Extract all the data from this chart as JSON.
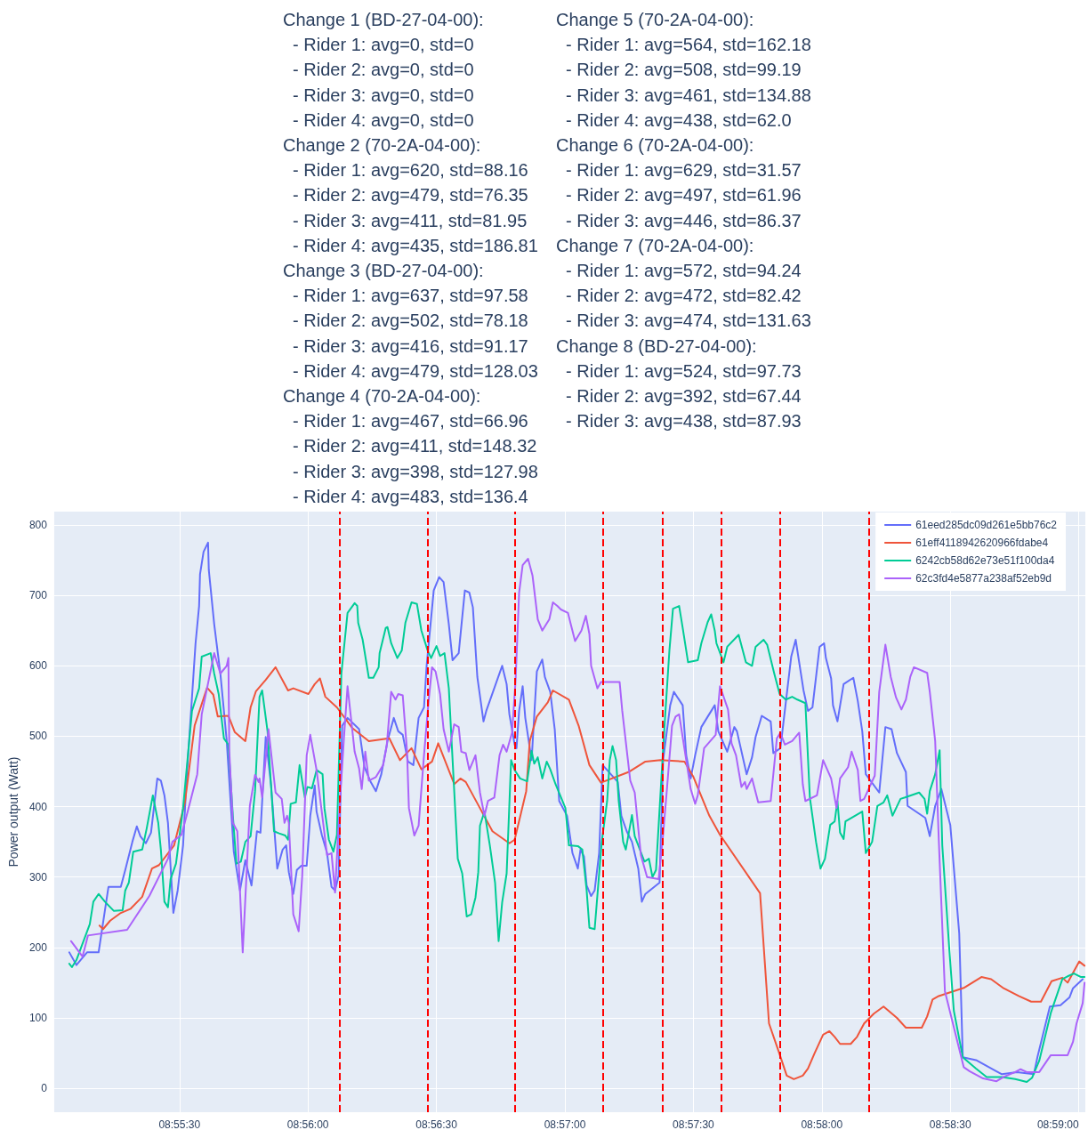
{
  "chart_data": {
    "type": "line",
    "ylabel": "Power output (Watt)",
    "annotations": [
      "Change 1 (BD-27-04-00):\n  - Rider 1: avg=0, std=0\n  - Rider 2: avg=0, std=0\n  - Rider 3: avg=0, std=0\n  - Rider 4: avg=0, std=0\nChange 2 (70-2A-04-00):\n  - Rider 1: avg=620, std=88.16\n  - Rider 2: avg=479, std=76.35\n  - Rider 3: avg=411, std=81.95\n  - Rider 4: avg=435, std=186.81\nChange 3 (BD-27-04-00):\n  - Rider 1: avg=637, std=97.58\n  - Rider 2: avg=502, std=78.18\n  - Rider 3: avg=416, std=91.17\n  - Rider 4: avg=479, std=128.03\nChange 4 (70-2A-04-00):\n  - Rider 1: avg=467, std=66.96\n  - Rider 2: avg=411, std=148.32\n  - Rider 3: avg=398, std=127.98\n  - Rider 4: avg=483, std=136.4",
      "Change 5 (70-2A-04-00):\n  - Rider 1: avg=564, std=162.18\n  - Rider 2: avg=508, std=99.19\n  - Rider 3: avg=461, std=134.88\n  - Rider 4: avg=438, std=62.0\nChange 6 (70-2A-04-00):\n  - Rider 1: avg=629, std=31.57\n  - Rider 2: avg=497, std=61.96\n  - Rider 3: avg=446, std=86.37\nChange 7 (70-2A-04-00):\n  - Rider 1: avg=572, std=94.24\n  - Rider 2: avg=472, std=82.42\n  - Rider 3: avg=474, std=131.63\nChange 8 (BD-27-04-00):\n  - Rider 1: avg=524, std=97.73\n  - Rider 2: avg=392, std=67.44\n  - Rider 3: avg=438, std=87.93"
    ],
    "xlim": [
      8.91687,
      8.98376
    ],
    "xticks": [
      {
        "value": 8.925,
        "label": "08:55:30"
      },
      {
        "value": 8.933333,
        "label": "08:56:00"
      },
      {
        "value": 8.941667,
        "label": "08:56:30"
      },
      {
        "value": 8.95,
        "label": "08:57:00"
      },
      {
        "value": 8.958333,
        "label": "08:57:30"
      },
      {
        "value": 8.966667,
        "label": "08:58:00"
      },
      {
        "value": 8.975,
        "label": "08:58:30"
      },
      {
        "value": 8.983333,
        "label": "08:59:00"
      }
    ],
    "ylim": [
      -34,
      819
    ],
    "yticks": [
      0,
      100,
      200,
      300,
      400,
      500,
      600,
      700,
      800
    ],
    "grid": true,
    "legend": "top right",
    "marker": "none",
    "line_style": "solid",
    "ref_lines": [
      {
        "axis": "x",
        "value": 8.93538,
        "color": "#ff0000",
        "line_style": "dashed"
      },
      {
        "axis": "x",
        "value": 8.94109,
        "color": "#ff0000",
        "line_style": "dashed"
      },
      {
        "axis": "x",
        "value": 8.94674,
        "color": "#ff0000",
        "line_style": "dashed"
      },
      {
        "axis": "x",
        "value": 8.95245,
        "color": "#ff0000",
        "line_style": "dashed"
      },
      {
        "axis": "x",
        "value": 8.95631,
        "color": "#ff0000",
        "line_style": "dashed"
      },
      {
        "axis": "x",
        "value": 8.96012,
        "color": "#ff0000",
        "line_style": "dashed"
      },
      {
        "axis": "x",
        "value": 8.96393,
        "color": "#ff0000",
        "line_style": "dashed"
      },
      {
        "axis": "x",
        "value": 8.96975,
        "color": "#ff0000",
        "line_style": "dashed"
      }
    ],
    "series": [
      {
        "name": "61eed285dc09d261e5bb76c2",
        "color": "#636efa",
        "x": [
          8.91785,
          8.91831,
          8.919,
          8.91975,
          8.92039,
          8.92119,
          8.92148,
          8.92194,
          8.92223,
          8.92246,
          8.92281,
          8.92315,
          8.92356,
          8.92379,
          8.92402,
          8.92425,
          8.9246,
          8.92488,
          8.92523,
          8.92546,
          8.92604,
          8.92627,
          8.92633,
          8.92656,
          8.92685,
          8.9269,
          8.92725,
          8.92765,
          8.92806,
          8.92852,
          8.92892,
          8.92927,
          8.92967,
          8.93002,
          8.93025,
          8.93059,
          8.93094,
          8.93134,
          8.93169,
          8.93192,
          8.93209,
          8.93238,
          8.93261,
          8.9329,
          8.93325,
          8.93348,
          8.93377,
          8.93389,
          8.93423,
          8.93457,
          8.93486,
          8.93509,
          8.93532,
          8.93555,
          8.9359,
          8.93665,
          8.937,
          8.9374,
          8.93774,
          8.93809,
          8.93849,
          8.9389,
          8.93919,
          8.93948,
          8.93982,
          8.94017,
          8.94051,
          8.94086,
          8.94103,
          8.94149,
          8.94184,
          8.94213,
          8.94247,
          8.94271,
          8.94311,
          8.94351,
          8.9438,
          8.94403,
          8.94432,
          8.94472,
          8.9449,
          8.94593,
          8.94622,
          8.9464,
          8.94674,
          8.94686,
          8.94703,
          8.94726,
          8.94743,
          8.94784,
          8.94818,
          8.94853,
          8.9487,
          8.94905,
          8.94934,
          8.94963,
          8.95014,
          8.95049,
          8.95084,
          8.95101,
          8.95124,
          8.95141,
          8.9517,
          8.95193,
          8.95222,
          8.95245,
          8.95343,
          8.95366,
          8.95401,
          8.95435,
          8.95476,
          8.95499,
          8.95522,
          8.95614,
          8.95637,
          8.95683,
          8.95707,
          8.95764,
          8.95787,
          8.95816,
          8.95845,
          8.95885,
          8.95972,
          8.95995,
          8.96053,
          8.96099,
          8.96116,
          8.96179,
          8.96214,
          8.96237,
          8.96277,
          8.96335,
          8.96352,
          8.96398,
          8.96468,
          8.96497,
          8.96548,
          8.96577,
          8.96606,
          8.96652,
          8.96681,
          8.96693,
          8.96727,
          8.96739,
          8.96768,
          8.96808,
          8.96871,
          8.969,
          8.96929,
          8.96952,
          8.97039,
          8.97079,
          8.97119,
          8.97154,
          8.97212,
          8.97223,
          8.97338,
          8.97367,
          8.97402,
          8.97442,
          8.975,
          8.97558,
          8.97581,
          8.97667,
          8.978,
          8.97835,
          8.97932,
          8.98042,
          8.98065,
          8.98146,
          8.98215,
          8.98273,
          8.98296,
          8.98359
        ],
        "values": [
          193,
          175,
          193,
          193,
          286,
          286,
          310,
          350,
          372,
          358,
          348,
          363,
          440,
          437,
          416,
          377,
          249,
          281,
          345,
          440,
          632,
          685,
          730,
          762,
          775,
          736,
          659,
          589,
          494,
          336,
          281,
          324,
          288,
          365,
          363,
          499,
          430,
          312,
          339,
          345,
          307,
          276,
          310,
          316,
          316,
          387,
          430,
          393,
          360,
          334,
          286,
          281,
          302,
          515,
          526,
          510,
          456,
          435,
          422,
          446,
          493,
          526,
          507,
          502,
          464,
          459,
          526,
          541,
          600,
          707,
          726,
          719,
          659,
          608,
          618,
          707,
          704,
          683,
          584,
          521,
          536,
          600,
          574,
          531,
          488,
          483,
          536,
          571,
          526,
          466,
          592,
          609,
          584,
          563,
          510,
          408,
          387,
          334,
          312,
          339,
          329,
          288,
          273,
          281,
          334,
          459,
          435,
          387,
          365,
          350,
          312,
          265,
          276,
          292,
          466,
          544,
          563,
          544,
          473,
          440,
          473,
          513,
          544,
          507,
          478,
          513,
          507,
          446,
          470,
          499,
          529,
          521,
          476,
          483,
          613,
          637,
          565,
          536,
          541,
          627,
          632,
          611,
          582,
          544,
          521,
          574,
          583,
          550,
          507,
          446,
          420,
          513,
          510,
          476,
          449,
          401,
          384,
          358,
          401,
          425,
          374,
          220,
          44,
          40,
          24,
          20,
          23,
          20,
          44,
          116,
          118,
          129,
          142,
          155
        ]
      },
      {
        "name": "61eff4118942620966fdabe4",
        "color": "#ef553b",
        "x": [
          8.91981,
          8.92004,
          8.9205,
          8.92119,
          8.92183,
          8.92258,
          8.92321,
          8.92367,
          8.92465,
          8.92535,
          8.92598,
          8.92679,
          8.92719,
          8.92748,
          8.92817,
          8.92858,
          8.92927,
          8.92961,
          8.92996,
          8.93059,
          8.93123,
          8.93204,
          8.93238,
          8.93336,
          8.93377,
          8.93411,
          8.93446,
          8.93521,
          8.93619,
          8.93728,
          8.93861,
          8.9393,
          8.94005,
          8.94069,
          8.94138,
          8.94178,
          8.94282,
          8.94322,
          8.94357,
          8.94461,
          8.9453,
          8.9464,
          8.94674,
          8.94749,
          8.94772,
          8.94818,
          8.94889,
          8.94922,
          8.95026,
          8.95089,
          8.95159,
          8.95234,
          8.95412,
          8.95522,
          8.9562,
          8.95776,
          8.95834,
          8.95937,
          8.96006,
          8.96266,
          8.96324,
          8.96387,
          8.96439,
          8.96485,
          8.96543,
          8.96577,
          8.96618,
          8.96675,
          8.96716,
          8.9675,
          8.96785,
          8.96854,
          8.96895,
          8.96941,
          8.97004,
          8.97067,
          8.97154,
          8.97212,
          8.97315,
          8.9735,
          8.97385,
          8.97425,
          8.97592,
          8.97702,
          8.97765,
          8.97846,
          8.97944,
          8.98025,
          8.98088,
          8.98157,
          8.98227,
          8.98261,
          8.98336,
          8.98371
        ],
        "values": [
          231,
          226,
          238,
          249,
          255,
          272,
          312,
          317,
          345,
          406,
          515,
          569,
          559,
          528,
          529,
          506,
          493,
          541,
          564,
          580,
          598,
          565,
          568,
          560,
          574,
          582,
          556,
          541,
          512,
          493,
          497,
          466,
          483,
          453,
          464,
          490,
          432,
          440,
          435,
          393,
          365,
          348,
          353,
          422,
          493,
          528,
          548,
          565,
          552,
          515,
          459,
          434,
          449,
          464,
          466,
          464,
          442,
          387,
          360,
          277,
          92,
          52,
          18,
          13,
          18,
          28,
          49,
          76,
          81,
          73,
          63,
          63,
          73,
          92,
          106,
          116,
          100,
          86,
          86,
          102,
          126,
          131,
          143,
          158,
          155,
          142,
          131,
          123,
          123,
          152,
          157,
          150,
          180,
          174
        ]
      },
      {
        "name": "6242cb58d62e73e51f100da4",
        "color": "#00cc96",
        "x": [
          8.91785,
          8.91802,
          8.91831,
          8.91918,
          8.91941,
          8.91975,
          8.92016,
          8.92073,
          8.92131,
          8.92148,
          8.92171,
          8.922,
          8.92258,
          8.92287,
          8.92327,
          8.92362,
          8.92379,
          8.92402,
          8.92425,
          8.92442,
          8.92477,
          8.92523,
          8.92581,
          8.92627,
          8.92644,
          8.92702,
          8.92725,
          8.92754,
          8.92788,
          8.92817,
          8.92846,
          8.92869,
          8.92898,
          8.92927,
          8.92961,
          8.9299,
          8.93019,
          8.93036,
          8.93071,
          8.93113,
          8.93146,
          8.93186,
          8.93204,
          8.93221,
          8.93255,
          8.93279,
          8.93313,
          8.9333,
          8.93359,
          8.93389,
          8.93428,
          8.9344,
          8.93469,
          8.93498,
          8.93521,
          8.9355,
          8.9359,
          8.93636,
          8.93653,
          8.93659,
          8.93688,
          8.93728,
          8.93757,
          8.93792,
          8.93798,
          8.93838,
          8.93849,
          8.93873,
          8.93913,
          8.93942,
          8.93965,
          8.94005,
          8.9404,
          8.94069,
          8.94109,
          8.94132,
          8.94167,
          8.9419,
          8.94219,
          8.94247,
          8.94305,
          8.94334,
          8.94363,
          8.94392,
          8.9442,
          8.94438,
          8.94449,
          8.94478,
          8.94513,
          8.94547,
          8.9457,
          8.94593,
          8.94622,
          8.94651,
          8.94674,
          8.94709,
          8.94755,
          8.94784,
          8.94801,
          8.94824,
          8.94853,
          8.94882,
          8.94905,
          8.94939,
          8.95003,
          8.95026,
          8.95084,
          8.95113,
          8.95141,
          8.95159,
          8.95193,
          8.95239,
          8.95274,
          8.95291,
          8.95309,
          8.95332,
          8.95349,
          8.95378,
          8.95395,
          8.95435,
          8.95453,
          8.95476,
          8.95516,
          8.95545,
          8.95568,
          8.95591,
          8.95608,
          8.95643,
          8.95678,
          8.95701,
          8.95741,
          8.95764,
          8.95799,
          8.95862,
          8.95885,
          8.95926,
          8.95949,
          8.95972,
          8.95983,
          8.96029,
          8.96053,
          8.96127,
          8.96174,
          8.96214,
          8.96237,
          8.96289,
          8.96312,
          8.96358,
          8.96393,
          8.96433,
          8.96474,
          8.96508,
          8.9656,
          8.96589,
          8.96629,
          8.96658,
          8.96687,
          8.96721,
          8.9675,
          8.96768,
          8.96785,
          8.96808,
          8.9682,
          8.96929,
          8.96952,
          8.96993,
          8.97027,
          8.97067,
          8.97091,
          8.97125,
          8.97177,
          8.97206,
          8.97298,
          8.97333,
          8.9735,
          8.97367,
          8.97402,
          8.97431,
          8.97448,
          8.97494,
          8.97523,
          8.97581,
          8.97667,
          8.97736,
          8.97835,
          8.97921,
          8.97996,
          8.98031,
          8.98077,
          8.98152,
          8.98227,
          8.98261,
          8.98302,
          8.98348,
          8.98371
        ],
        "values": [
          177,
          172,
          182,
          233,
          265,
          276,
          265,
          252,
          253,
          281,
          292,
          336,
          339,
          369,
          416,
          377,
          339,
          265,
          257,
          297,
          319,
          398,
          536,
          568,
          613,
          618,
          589,
          560,
          497,
          488,
          387,
          319,
          322,
          350,
          358,
          422,
          556,
          565,
          507,
          365,
          362,
          359,
          353,
          404,
          406,
          459,
          413,
          428,
          426,
          452,
          446,
          398,
          353,
          336,
          360,
          589,
          675,
          689,
          685,
          661,
          637,
          583,
          583,
          598,
          618,
          654,
          655,
          632,
          611,
          622,
          661,
          690,
          688,
          650,
          622,
          611,
          628,
          614,
          618,
          568,
          326,
          305,
          244,
          247,
          271,
          307,
          373,
          393,
          345,
          292,
          209,
          264,
          305,
          466,
          452,
          440,
          436,
          479,
          461,
          470,
          440,
          464,
          453,
          432,
          398,
          345,
          344,
          339,
          281,
          228,
          226,
          350,
          408,
          466,
          486,
          466,
          408,
          350,
          339,
          388,
          358,
          345,
          322,
          326,
          300,
          310,
          373,
          504,
          622,
          681,
          685,
          654,
          605,
          608,
          632,
          662,
          673,
          650,
          632,
          605,
          627,
          644,
          605,
          600,
          627,
          637,
          630,
          589,
          560,
          552,
          556,
          552,
          547,
          413,
          350,
          312,
          326,
          374,
          379,
          408,
          363,
          354,
          379,
          393,
          334,
          350,
          401,
          406,
          416,
          387,
          411,
          413,
          420,
          411,
          390,
          422,
          446,
          480,
          345,
          196,
          110,
          44,
          28,
          16,
          16,
          13,
          9,
          15,
          39,
          107,
          155,
          159,
          163,
          158,
          158
        ]
      },
      {
        "name": "62c3fd4e5877a238af52eb9d",
        "color": "#ab63fa",
        "x": [
          8.91796,
          8.91871,
          8.91906,
          8.9216,
          8.92304,
          8.92425,
          8.92454,
          8.92512,
          8.92546,
          8.92615,
          8.92644,
          8.92725,
          8.92765,
          8.92806,
          8.92817,
          8.92823,
          8.92846,
          8.92875,
          8.9291,
          8.92938,
          8.92956,
          8.9299,
          8.93013,
          8.93019,
          8.93036,
          8.93077,
          8.93123,
          8.93163,
          8.93181,
          8.93198,
          8.93209,
          8.93238,
          8.93273,
          8.93296,
          8.93325,
          8.93348,
          8.93389,
          8.93434,
          8.93457,
          8.93486,
          8.93509,
          8.93538,
          8.93567,
          8.9359,
          8.93636,
          8.93665,
          8.93682,
          8.93705,
          8.93728,
          8.93774,
          8.93821,
          8.93844,
          8.93873,
          8.93901,
          8.93919,
          8.93948,
          8.93976,
          8.93988,
          8.94023,
          8.94051,
          8.94086,
          8.94115,
          8.94138,
          8.94161,
          8.9419,
          8.94213,
          8.94247,
          8.94282,
          8.94311,
          8.94328,
          8.94357,
          8.9438,
          8.9442,
          8.94449,
          8.94478,
          8.94501,
          8.94542,
          8.94576,
          8.94599,
          8.94622,
          8.94657,
          8.9468,
          8.94703,
          8.94726,
          8.94761,
          8.9479,
          8.94824,
          8.94853,
          8.94899,
          8.94922,
          8.94951,
          8.94974,
          8.9502,
          8.95038,
          8.95066,
          8.95107,
          8.95136,
          8.95159,
          8.9517,
          8.95211,
          8.95234,
          8.95355,
          8.95372,
          8.95424,
          8.95453,
          8.95493,
          8.95533,
          8.95608,
          8.95637,
          8.9566,
          8.95695,
          8.95718,
          8.95741,
          8.95787,
          8.95816,
          8.95845,
          8.95862,
          8.95903,
          8.95978,
          8.96006,
          8.96058,
          8.96081,
          8.9611,
          8.96145,
          8.96168,
          8.96179,
          8.96214,
          8.96254,
          8.96335,
          8.96375,
          8.96398,
          8.96427,
          8.96474,
          8.9652,
          8.96543,
          8.9656,
          8.96635,
          8.96675,
          8.96727,
          8.96762,
          8.96785,
          8.96837,
          8.9686,
          8.969,
          8.96917,
          8.96941,
          8.9701,
          8.97039,
          8.97079,
          8.97114,
          8.97148,
          8.97183,
          8.97212,
          8.9724,
          8.97264,
          8.9735,
          8.97367,
          8.97402,
          8.97425,
          8.97465,
          8.97587,
          8.97627,
          8.97713,
          8.978,
          8.97846,
          8.97921,
          8.97956,
          8.97996,
          8.98077,
          8.98152,
          8.98227,
          8.98261,
          8.98296,
          8.98319,
          8.98359,
          8.98371
        ],
        "values": [
          209,
          187,
          217,
          225,
          273,
          326,
          350,
          360,
          387,
          446,
          531,
          618,
          589,
          600,
          611,
          478,
          377,
          365,
          193,
          319,
          401,
          445,
          435,
          440,
          413,
          510,
          420,
          411,
          377,
          387,
          377,
          247,
          223,
          302,
          473,
          502,
          452,
          373,
          331,
          334,
          278,
          398,
          499,
          571,
          478,
          454,
          425,
          478,
          437,
          442,
          459,
          486,
          563,
          552,
          560,
          558,
          478,
          398,
          359,
          373,
          473,
          548,
          598,
          592,
          560,
          510,
          478,
          517,
          513,
          478,
          476,
          452,
          473,
          420,
          387,
          408,
          413,
          473,
          488,
          478,
          505,
          579,
          704,
          743,
          752,
          728,
          666,
          650,
          666,
          690,
          685,
          680,
          675,
          659,
          635,
          650,
          671,
          645,
          600,
          568,
          577,
          577,
          536,
          437,
          420,
          331,
          300,
          297,
          360,
          420,
          515,
          528,
          531,
          466,
          425,
          404,
          416,
          483,
          502,
          571,
          538,
          490,
          473,
          428,
          435,
          425,
          440,
          406,
          408,
          497,
          505,
          488,
          493,
          505,
          432,
          408,
          416,
          466,
          440,
          398,
          440,
          456,
          478,
          452,
          408,
          411,
          444,
          563,
          630,
          584,
          555,
          538,
          552,
          584,
          598,
          590,
          563,
          493,
          355,
          138,
          30,
          24,
          14,
          10,
          16,
          23,
          27,
          23,
          23,
          47,
          47,
          47,
          66,
          92,
          121,
          150
        ]
      }
    ]
  }
}
